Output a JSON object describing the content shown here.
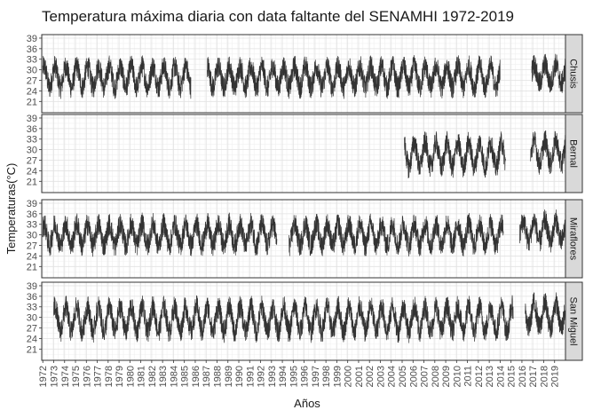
{
  "chart_data": {
    "type": "line",
    "title": "Temperatura máxima diaria con data faltante del SENAMHI 1972-2019",
    "xlabel": "Años",
    "ylabel": "Temperaturas(°C)",
    "xlim": [
      1971.9,
      2020.0
    ],
    "ylim": [
      17.8,
      40.0
    ],
    "yticks": [
      21,
      24,
      27,
      30,
      33,
      36,
      39
    ],
    "xticks": [
      1972,
      1973,
      1974,
      1975,
      1976,
      1977,
      1978,
      1979,
      1980,
      1981,
      1982,
      1983,
      1984,
      1985,
      1986,
      1987,
      1988,
      1989,
      1990,
      1991,
      1992,
      1993,
      1994,
      1995,
      1996,
      1997,
      1998,
      1999,
      2000,
      2001,
      2002,
      2003,
      2004,
      2005,
      2006,
      2007,
      2008,
      2009,
      2010,
      2011,
      2012,
      2013,
      2014,
      2015,
      2016,
      2017,
      2018,
      2019
    ],
    "grid": true,
    "facet_strip_position": "right",
    "line_color": "#333333",
    "panels": [
      {
        "name": "Chusis",
        "segments": [
          {
            "start": 1972.0,
            "end": 1985.6,
            "summer_mean": 31.0,
            "winter_mean": 25.0
          },
          {
            "start": 1987.1,
            "end": 2014.0,
            "summer_mean": 31.0,
            "winter_mean": 25.0
          },
          {
            "start": 2016.9,
            "end": 2020.0,
            "summer_mean": 31.5,
            "winter_mean": 26.0
          }
        ]
      },
      {
        "name": "Bernal",
        "segments": [
          {
            "start": 2005.2,
            "end": 2014.5,
            "summer_mean": 32.0,
            "winter_mean": 25.0
          },
          {
            "start": 2016.8,
            "end": 2020.0,
            "summer_mean": 32.5,
            "winter_mean": 26.0
          }
        ]
      },
      {
        "name": "Miraflores",
        "segments": [
          {
            "start": 1972.0,
            "end": 1993.5,
            "summer_mean": 33.0,
            "winter_mean": 27.0
          },
          {
            "start": 1994.6,
            "end": 2014.3,
            "summer_mean": 33.0,
            "winter_mean": 27.0
          },
          {
            "start": 2015.8,
            "end": 2020.0,
            "summer_mean": 34.0,
            "winter_mean": 28.0
          }
        ]
      },
      {
        "name": "San Miguel",
        "segments": [
          {
            "start": 1973.0,
            "end": 2015.2,
            "summer_mean": 33.0,
            "winter_mean": 26.0
          },
          {
            "start": 2016.3,
            "end": 2020.0,
            "summer_mean": 34.0,
            "winter_mean": 27.0
          }
        ]
      }
    ]
  }
}
